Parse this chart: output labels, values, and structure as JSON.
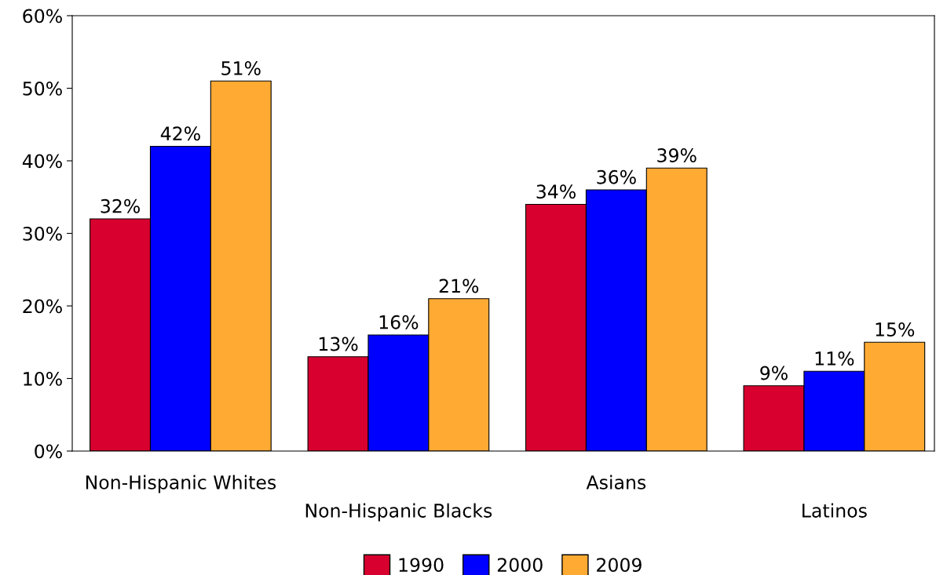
{
  "chart_data": {
    "type": "bar",
    "categories": [
      "Non-Hispanic Whites",
      "Non-Hispanic Blacks",
      "Asians",
      "Latinos"
    ],
    "series": [
      {
        "name": "1990",
        "color": "#d7002f",
        "values": [
          32,
          13,
          34,
          9
        ]
      },
      {
        "name": "2000",
        "color": "#0000ff",
        "values": [
          42,
          16,
          36,
          11
        ]
      },
      {
        "name": "2009",
        "color": "#ffaa33",
        "values": [
          51,
          21,
          39,
          15
        ]
      }
    ],
    "ylim": [
      0,
      60
    ],
    "yticks": [
      {
        "value": 0,
        "label": "0%"
      },
      {
        "value": 10,
        "label": "10%"
      },
      {
        "value": 20,
        "label": "20%"
      },
      {
        "value": 30,
        "label": "30%"
      },
      {
        "value": 40,
        "label": "40%"
      },
      {
        "value": 50,
        "label": "50%"
      },
      {
        "value": 60,
        "label": "60%"
      }
    ],
    "value_labels": [
      [
        "32%",
        "13%",
        "34%",
        "9%"
      ],
      [
        "42%",
        "16%",
        "36%",
        "11%"
      ],
      [
        "51%",
        "21%",
        "39%",
        "15%"
      ]
    ],
    "grid": false,
    "legend": "bottom"
  }
}
